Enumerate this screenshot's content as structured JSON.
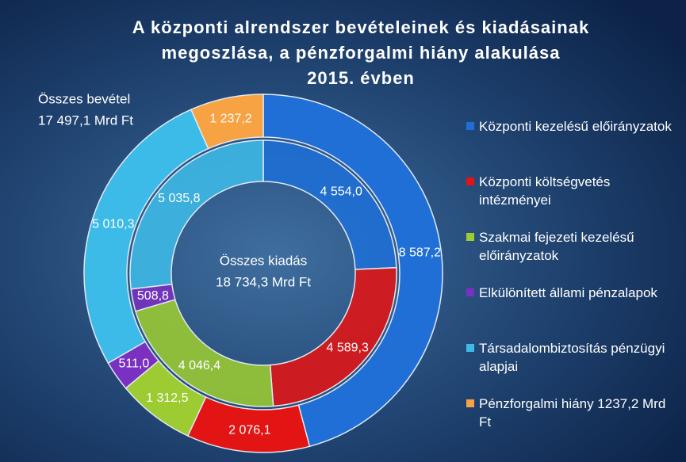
{
  "chart_data": {
    "type": "donut",
    "title": [
      "A központi alrendszer bevételeinek és kiadásainak",
      "megoszlása, a pénzforgalmi hiány alakulása",
      "2015. évben"
    ],
    "categories": [
      "Központi kezelésű előirányzatok",
      "Központi költségvetés intézményei",
      "Szakmai fejezeti kezelésű előirányzatok",
      "Elkülönített állami pénzalapok",
      "Társadalombiztosítás pénzügyi alapjai",
      "Pénzforgalmi hiány 1237,2 Mrd Ft"
    ],
    "colors": [
      "#1f6fd6",
      "#e31414",
      "#9ccc32",
      "#7a30c0",
      "#3dbbe8",
      "#f7a343"
    ],
    "rings": [
      {
        "values": [
          8587.2,
          2076.1,
          1312.5,
          511.0,
          5010.3,
          1237.2
        ],
        "value_labels": [
          "8 587,2",
          "2 076,1",
          "1 312,5",
          "511,0",
          "5 010,3",
          "1 237,2"
        ]
      },
      {
        "values": [
          4554.0,
          4589.3,
          4046.4,
          508.8,
          5035.8,
          null
        ],
        "value_labels": [
          "4 554,0",
          "4 589,3",
          "4 046,4",
          "508,8",
          "5 035,8",
          null
        ]
      }
    ],
    "outer_label": [
      "Összes bevétel",
      "17 497,1 Mrd Ft"
    ],
    "center_label": [
      "Összes kiadás",
      "18 734,3 Mrd Ft"
    ],
    "legend": "right"
  }
}
